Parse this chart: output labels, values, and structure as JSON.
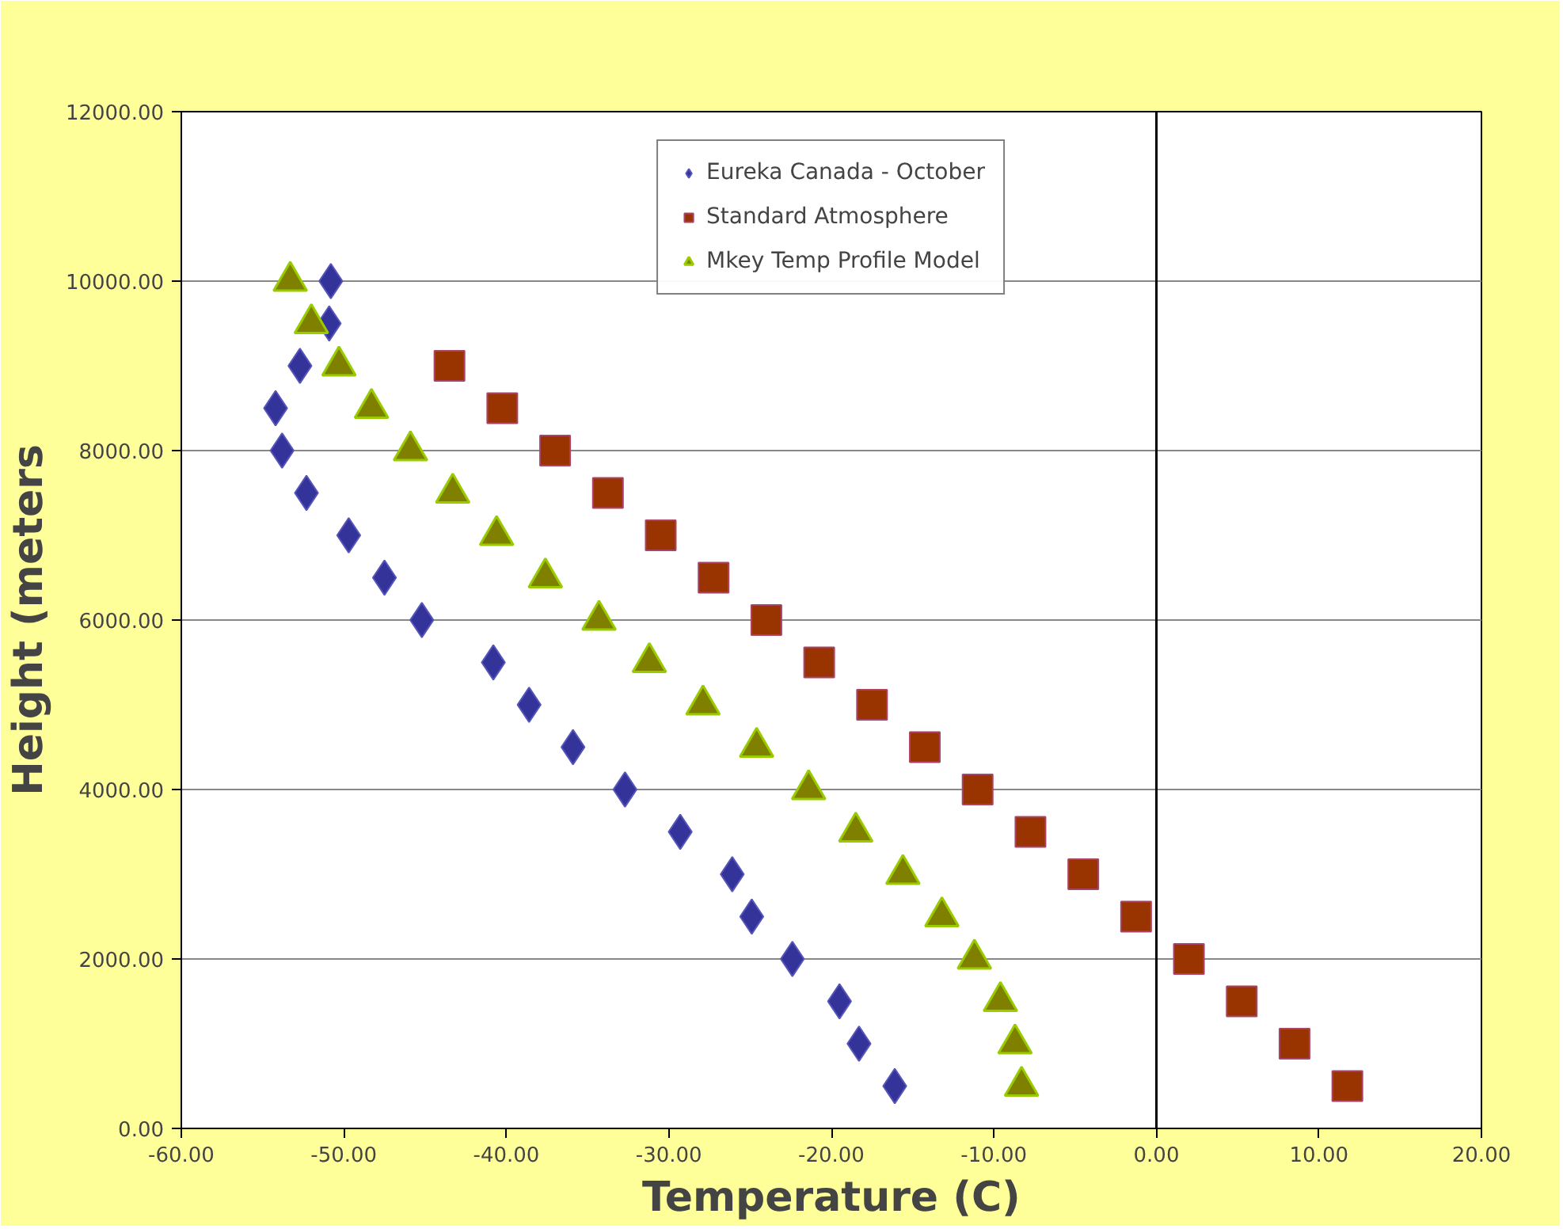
{
  "chart_data": {
    "type": "scatter",
    "xlabel": "Temperature (C)",
    "ylabel": "Height (meters",
    "xlim": [
      -60,
      20
    ],
    "ylim": [
      0,
      12000
    ],
    "xticks": [
      {
        "value": -60,
        "label": "-60.00"
      },
      {
        "value": -50,
        "label": "-50.00"
      },
      {
        "value": -40,
        "label": "-40.00"
      },
      {
        "value": -30,
        "label": "-30.00"
      },
      {
        "value": -20,
        "label": "-20.00"
      },
      {
        "value": -10,
        "label": "-10.00"
      },
      {
        "value": 0,
        "label": "0.00"
      },
      {
        "value": 10,
        "label": "10.00"
      },
      {
        "value": 20,
        "label": "20.00"
      }
    ],
    "yticks": [
      {
        "value": 0,
        "label": "0.00"
      },
      {
        "value": 2000,
        "label": "2000.00"
      },
      {
        "value": 4000,
        "label": "4000.00"
      },
      {
        "value": 6000,
        "label": "6000.00"
      },
      {
        "value": 8000,
        "label": "8000.00"
      },
      {
        "value": 10000,
        "label": "10000.00"
      },
      {
        "value": 12000,
        "label": "12000.00"
      }
    ],
    "grid": "y",
    "legend": "top",
    "ref_lines": [
      {
        "axis": "x",
        "value": 0,
        "label": null,
        "color": "#000000"
      }
    ],
    "series": [
      {
        "name": "Eureka Canada - October",
        "color": "#333399",
        "marker": "diamond",
        "x": [
          -50.8,
          -50.9,
          -52.7,
          -54.2,
          -53.8,
          -52.3,
          -49.7,
          -47.5,
          -45.2,
          -40.8,
          -38.6,
          -35.9,
          -32.7,
          -29.3,
          -26.1,
          -24.9,
          -22.4,
          -19.5,
          -18.3,
          -16.1
        ],
        "values": [
          10000,
          9500,
          9000,
          8500,
          8000,
          7500,
          7000,
          6500,
          6000,
          5500,
          5000,
          4500,
          4000,
          3500,
          3000,
          2500,
          2000,
          1500,
          1000,
          500
        ]
      },
      {
        "name": "Standard Atmosphere",
        "color": "#993300",
        "marker": "square",
        "x": [
          -43.5,
          -40.25,
          -37,
          -33.75,
          -30.5,
          -27.25,
          -24,
          -20.75,
          -17.5,
          -14.25,
          -11,
          -7.75,
          -4.5,
          -1.25,
          2,
          5.25,
          8.5,
          11.75
        ],
        "values": [
          9000,
          8500,
          8000,
          7500,
          7000,
          6500,
          6000,
          5500,
          5000,
          4500,
          4000,
          3500,
          3000,
          2500,
          2000,
          1500,
          1000,
          500
        ]
      },
      {
        "name": "Mkey Temp Profile Model",
        "color": "#808000",
        "marker": "triangle",
        "x": [
          -53.3,
          -52.0,
          -50.3,
          -48.3,
          -45.9,
          -43.3,
          -40.6,
          -37.6,
          -34.3,
          -31.2,
          -27.9,
          -24.6,
          -21.4,
          -18.5,
          -15.6,
          -13.2,
          -11.2,
          -9.6,
          -8.7,
          -8.3
        ],
        "values": [
          10000,
          9500,
          9000,
          8500,
          8000,
          7500,
          7000,
          6500,
          6000,
          5500,
          5000,
          4500,
          4000,
          3500,
          3000,
          2500,
          2000,
          1500,
          1000,
          500
        ]
      }
    ]
  }
}
